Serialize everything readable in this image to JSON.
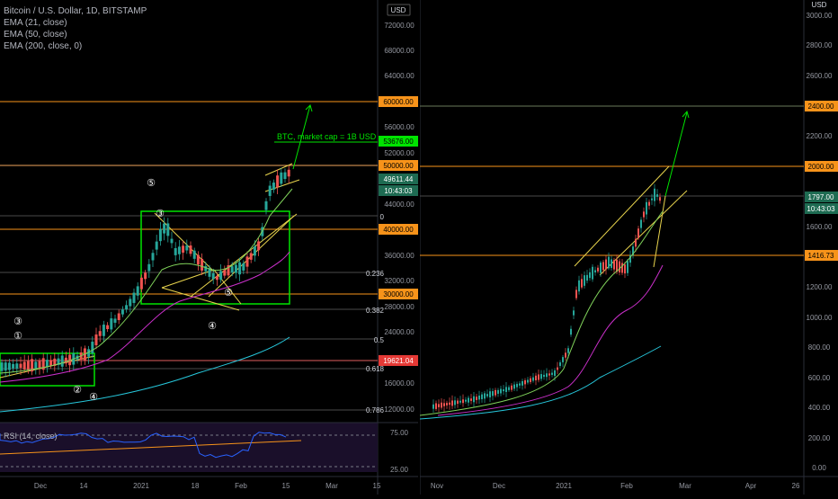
{
  "legend": {
    "title": "Bitcoin / U.S. Dollar, 1D, BITSTAMP",
    "ema21": "EMA (21, close)",
    "ema50": "EMA (50, close)",
    "ema200": "EMA (200, close, 0)",
    "rsi": "RSI (14, close)"
  },
  "colors": {
    "background": "#000000",
    "up_candle": "#26a69a",
    "down_candle": "#ef5350",
    "level_line": "#f7931a",
    "trendline": "#e8d44d",
    "box": "#00e400",
    "ema21": "#7fd15a",
    "ema50": "#c92fc9",
    "ema200": "#26c6da",
    "rsi": "#2962ff"
  },
  "chart_data": [
    {
      "type": "line",
      "pane": "left",
      "currency": "USD",
      "y_ticks": [
        "72000.00",
        "68000.00",
        "64000.00",
        "60000.00",
        "56000.00",
        "52000.00",
        "48000.00",
        "44000.00",
        "40000.00",
        "36000.00",
        "32000.00",
        "28000.00",
        "24000.00",
        "20000.00",
        "16000.00",
        "12000.00"
      ],
      "x_ticks": [
        "Dec",
        "14",
        "2021",
        "18",
        "Feb",
        "15",
        "Mar",
        "15"
      ],
      "price_tags": [
        {
          "label": "60000.00",
          "kind": "level"
        },
        {
          "label": "53676.00",
          "kind": "target"
        },
        {
          "label": "50000.00",
          "kind": "level"
        },
        {
          "label": "49611.44",
          "kind": "price"
        },
        {
          "label": "10:43:03",
          "kind": "price"
        },
        {
          "label": "40000.00",
          "kind": "level"
        },
        {
          "label": "30000.00",
          "kind": "level"
        },
        {
          "label": "19621.04",
          "kind": "red"
        }
      ],
      "fib_levels": [
        "0",
        "0.236",
        "0.382",
        "0.5",
        "0.618",
        "0.786"
      ],
      "annotation": "BTC, market cap = 1B USD",
      "wave_labels": [
        "⑤",
        "③",
        "③",
        "①",
        "②",
        "④",
        "④",
        "⑤"
      ],
      "rsi": {
        "label": "RSI (14, close)",
        "ticks": [
          "75.00",
          "25.00"
        ]
      }
    },
    {
      "type": "line",
      "pane": "right",
      "currency": "USD",
      "y_ticks": [
        "3000.00",
        "2800.00",
        "2600.00",
        "2400.00",
        "2200.00",
        "2000.00",
        "1800.00",
        "1600.00",
        "1400.00",
        "1200.00",
        "1000.00",
        "800.00",
        "600.00",
        "400.00",
        "200.00",
        "0.00"
      ],
      "x_ticks": [
        "Nov",
        "Dec",
        "2021",
        "Feb",
        "Mar",
        "Apr",
        "26"
      ],
      "price_tags": [
        {
          "label": "2400.00",
          "kind": "level"
        },
        {
          "label": "2000.00",
          "kind": "level"
        },
        {
          "label": "1797.00",
          "kind": "price"
        },
        {
          "label": "10:43:03",
          "kind": "price"
        },
        {
          "label": "1416.73",
          "kind": "level"
        }
      ]
    }
  ]
}
